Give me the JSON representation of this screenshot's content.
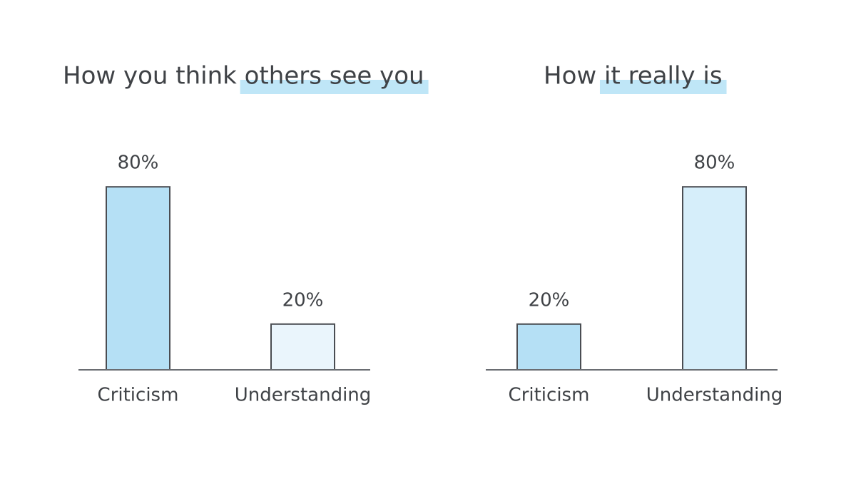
{
  "chart_data": [
    {
      "type": "bar",
      "title": "How you think others see you",
      "categories": [
        "Criticism",
        "Understanding"
      ],
      "values": [
        80,
        20
      ],
      "value_labels": [
        "80%",
        "20%"
      ],
      "colors": [
        "#b5e0f5",
        "#eaf5fc"
      ]
    },
    {
      "type": "bar",
      "title": "How it really is",
      "categories": [
        "Criticism",
        "Understanding"
      ],
      "values": [
        20,
        80
      ],
      "value_labels": [
        "20%",
        "80%"
      ],
      "colors": [
        "#b5e0f5",
        "#d6eefa"
      ]
    }
  ]
}
